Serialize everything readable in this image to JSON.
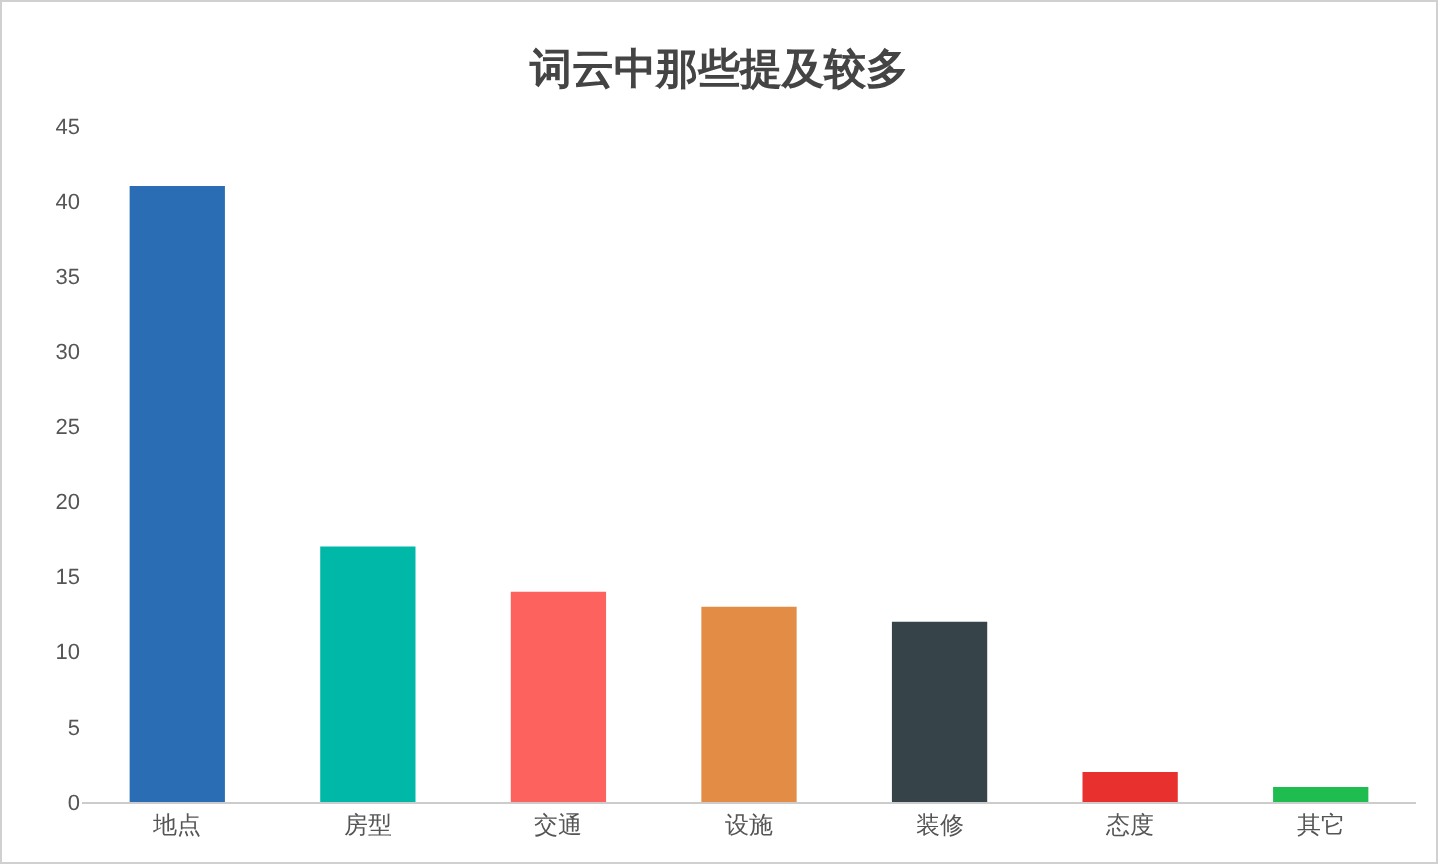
{
  "chart_data": {
    "type": "bar",
    "title": "词云中那些提及较多",
    "categories": [
      "地点",
      "房型",
      "交通",
      "设施",
      "装修",
      "态度",
      "其它"
    ],
    "values": [
      41,
      17,
      14,
      13,
      12,
      2,
      1
    ],
    "colors": [
      "#2a6db5",
      "#00b8a8",
      "#fd625e",
      "#e38c46",
      "#364449",
      "#e8302e",
      "#1fbd4f"
    ],
    "ylim": [
      0,
      45
    ],
    "yticks": [
      0,
      5,
      10,
      15,
      20,
      25,
      30,
      35,
      40,
      45
    ],
    "grid": false
  }
}
